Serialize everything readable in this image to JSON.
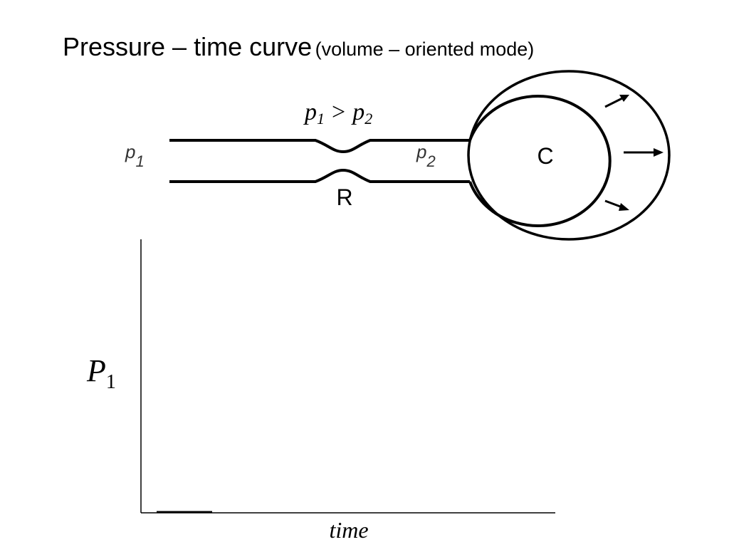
{
  "header": {
    "title": "Pressure – time curve",
    "subtitle": "(volume – oriented mode)"
  },
  "diagram": {
    "relation": {
      "left": {
        "symbol": "p",
        "subscript": "1"
      },
      "operator": ">",
      "right": {
        "symbol": "p",
        "subscript": "2"
      }
    },
    "inlet": {
      "symbol": "p",
      "subscript": "1"
    },
    "outlet": {
      "symbol": "p",
      "subscript": "2"
    },
    "resistance": "R",
    "compliance": "C"
  },
  "plot": {
    "y_label": {
      "symbol": "P",
      "subscript": "1"
    },
    "x_label": "time"
  }
}
